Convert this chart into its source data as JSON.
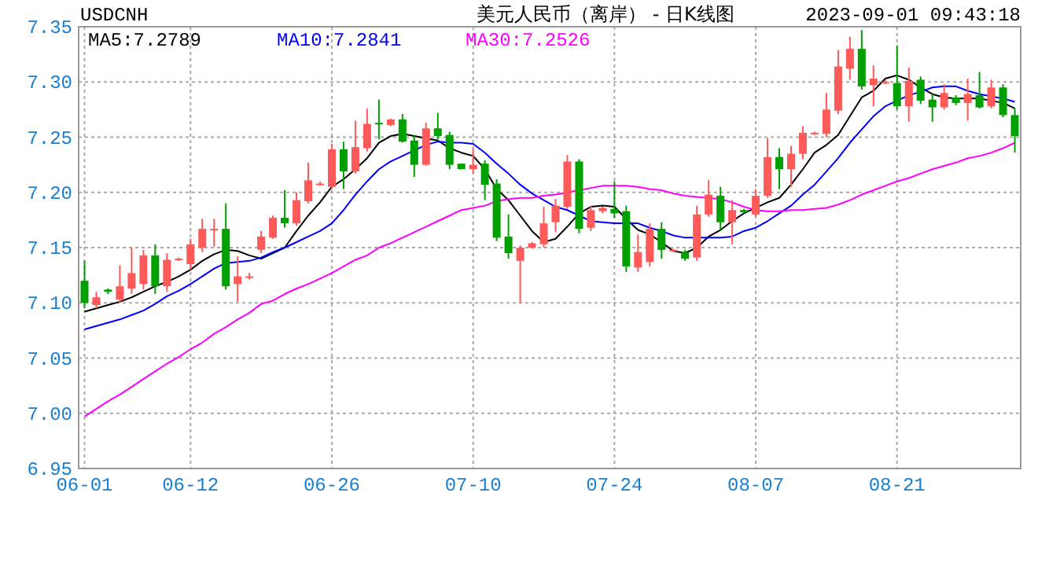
{
  "chart_data": {
    "type": "candlestick",
    "title": "美元人民币（离岸） - 日K线图",
    "annotations": [
      "USDCNH",
      "2023-09-01 09:43:18"
    ],
    "categories": [
      "06-01",
      null,
      null,
      null,
      null,
      null,
      null,
      null,
      null,
      "06-12",
      null,
      null,
      null,
      null,
      null,
      null,
      null,
      null,
      null,
      null,
      null,
      "06-26",
      null,
      null,
      null,
      null,
      null,
      null,
      null,
      null,
      null,
      null,
      null,
      "07-10",
      null,
      null,
      null,
      null,
      null,
      null,
      null,
      null,
      null,
      null,
      null,
      "07-24",
      null,
      null,
      null,
      null,
      null,
      null,
      null,
      null,
      null,
      null,
      null,
      "08-07",
      null,
      null,
      null,
      null,
      null,
      null,
      null,
      null,
      null,
      null,
      null,
      "08-21",
      null,
      null,
      null,
      null,
      null,
      null,
      null,
      null,
      null,
      null
    ],
    "ohlc": [
      [
        7.12,
        7.138,
        7.095,
        7.1
      ],
      [
        7.098,
        7.11,
        7.095,
        7.105
      ],
      [
        7.112,
        7.113,
        7.108,
        7.11
      ],
      [
        7.103,
        7.134,
        7.1,
        7.115
      ],
      [
        7.113,
        7.15,
        7.108,
        7.127
      ],
      [
        7.117,
        7.148,
        7.112,
        7.143
      ],
      [
        7.143,
        7.153,
        7.108,
        7.115
      ],
      [
        7.115,
        7.145,
        7.11,
        7.139
      ],
      [
        7.139,
        7.141,
        7.138,
        7.14
      ],
      [
        7.135,
        7.158,
        7.13,
        7.153
      ],
      [
        7.15,
        7.176,
        7.146,
        7.167
      ],
      [
        7.166,
        7.176,
        7.151,
        7.167
      ],
      [
        7.167,
        7.19,
        7.112,
        7.115
      ],
      [
        7.117,
        7.142,
        7.101,
        7.124
      ],
      [
        7.123,
        7.127,
        7.121,
        7.124
      ],
      [
        7.148,
        7.165,
        7.145,
        7.16
      ],
      [
        7.159,
        7.179,
        7.158,
        7.177
      ],
      [
        7.177,
        7.202,
        7.168,
        7.172
      ],
      [
        7.172,
        7.2,
        7.17,
        7.193
      ],
      [
        7.192,
        7.227,
        7.19,
        7.211
      ],
      [
        7.207,
        7.21,
        7.206,
        7.208
      ],
      [
        7.205,
        7.244,
        7.203,
        7.239
      ],
      [
        7.239,
        7.246,
        7.203,
        7.219
      ],
      [
        7.219,
        7.265,
        7.217,
        7.241
      ],
      [
        7.24,
        7.276,
        7.237,
        7.262
      ],
      [
        7.263,
        7.284,
        7.248,
        7.262
      ],
      [
        7.261,
        7.267,
        7.26,
        7.266
      ],
      [
        7.266,
        7.271,
        7.245,
        7.246
      ],
      [
        7.247,
        7.252,
        7.214,
        7.225
      ],
      [
        7.225,
        7.263,
        7.224,
        7.258
      ],
      [
        7.258,
        7.272,
        7.248,
        7.251
      ],
      [
        7.252,
        7.255,
        7.221,
        7.225
      ],
      [
        7.226,
        7.226,
        7.221,
        7.221
      ],
      [
        7.221,
        7.24,
        7.217,
        7.225
      ],
      [
        7.226,
        7.229,
        7.193,
        7.207
      ],
      [
        7.208,
        7.212,
        7.156,
        7.159
      ],
      [
        7.16,
        7.18,
        7.14,
        7.145
      ],
      [
        7.138,
        7.152,
        7.1,
        7.15
      ],
      [
        7.15,
        7.155,
        7.149,
        7.154
      ],
      [
        7.153,
        7.187,
        7.15,
        7.172
      ],
      [
        7.173,
        7.194,
        7.164,
        7.188
      ],
      [
        7.187,
        7.234,
        7.185,
        7.228
      ],
      [
        7.228,
        7.23,
        7.163,
        7.167
      ],
      [
        7.168,
        7.188,
        7.165,
        7.184
      ],
      [
        7.183,
        7.187,
        7.181,
        7.186
      ],
      [
        7.185,
        7.21,
        7.177,
        7.181
      ],
      [
        7.183,
        7.188,
        7.128,
        7.133
      ],
      [
        7.132,
        7.162,
        7.128,
        7.146
      ],
      [
        7.137,
        7.172,
        7.133,
        7.167
      ],
      [
        7.167,
        7.173,
        7.14,
        7.148
      ],
      [
        7.147,
        7.149,
        7.146,
        7.148
      ],
      [
        7.146,
        7.148,
        7.138,
        7.14
      ],
      [
        7.141,
        7.188,
        7.138,
        7.18
      ],
      [
        7.18,
        7.211,
        7.178,
        7.198
      ],
      [
        7.197,
        7.205,
        7.166,
        7.173
      ],
      [
        7.173,
        7.193,
        7.153,
        7.184
      ],
      [
        7.184,
        7.185,
        7.181,
        7.182
      ],
      [
        7.18,
        7.203,
        7.178,
        7.197
      ],
      [
        7.197,
        7.249,
        7.195,
        7.232
      ],
      [
        7.232,
        7.24,
        7.203,
        7.221
      ],
      [
        7.221,
        7.242,
        7.205,
        7.235
      ],
      [
        7.235,
        7.26,
        7.23,
        7.254
      ],
      [
        7.253,
        7.255,
        7.252,
        7.254
      ],
      [
        7.253,
        7.29,
        7.25,
        7.275
      ],
      [
        7.274,
        7.329,
        7.271,
        7.314
      ],
      [
        7.312,
        7.341,
        7.302,
        7.33
      ],
      [
        7.33,
        7.347,
        7.293,
        7.296
      ],
      [
        7.297,
        7.315,
        7.278,
        7.303
      ],
      [
        7.299,
        7.302,
        7.298,
        7.3
      ],
      [
        7.299,
        7.333,
        7.275,
        7.278
      ],
      [
        7.278,
        7.313,
        7.264,
        7.301
      ],
      [
        7.302,
        7.305,
        7.28,
        7.283
      ],
      [
        7.284,
        7.289,
        7.264,
        7.277
      ],
      [
        7.277,
        7.298,
        7.275,
        7.29
      ],
      [
        7.286,
        7.288,
        7.279,
        7.281
      ],
      [
        7.281,
        7.303,
        7.265,
        7.289
      ],
      [
        7.288,
        7.309,
        7.276,
        7.277
      ],
      [
        7.278,
        7.302,
        7.276,
        7.295
      ],
      [
        7.295,
        7.298,
        7.268,
        7.27
      ],
      [
        7.27,
        7.276,
        7.236,
        7.251
      ]
    ],
    "colors": [
      "#00a000",
      "#ff5a5a",
      "#00a000",
      "#ff5a5a",
      "#ff5a5a",
      "#ff5a5a",
      "#00a000",
      "#ff5a5a",
      "#ff5a5a",
      "#ff5a5a",
      "#ff5a5a",
      "#ff5a5a",
      "#00a000",
      "#ff5a5a",
      "#ff5a5a",
      "#ff5a5a",
      "#ff5a5a",
      "#00a000",
      "#ff5a5a",
      "#ff5a5a",
      "#ff5a5a",
      "#ff5a5a",
      "#00a000",
      "#ff5a5a",
      "#ff5a5a",
      "#00a000",
      "#ff5a5a",
      "#00a000",
      "#00a000",
      "#ff5a5a",
      "#00a000",
      "#00a000",
      "#00a000",
      "#ff5a5a",
      "#00a000",
      "#00a000",
      "#00a000",
      "#ff5a5a",
      "#ff5a5a",
      "#ff5a5a",
      "#ff5a5a",
      "#ff5a5a",
      "#00a000",
      "#ff5a5a",
      "#ff5a5a",
      "#00a000",
      "#00a000",
      "#ff5a5a",
      "#ff5a5a",
      "#00a000",
      "#ff5a5a",
      "#00a000",
      "#ff5a5a",
      "#ff5a5a",
      "#00a000",
      "#ff5a5a",
      "#00a000",
      "#ff5a5a",
      "#ff5a5a",
      "#00a000",
      "#ff5a5a",
      "#ff5a5a",
      "#ff5a5a",
      "#ff5a5a",
      "#ff5a5a",
      "#ff5a5a",
      "#00a000",
      "#ff5a5a",
      "#ff5a5a",
      "#00a000",
      "#ff5a5a",
      "#00a000",
      "#00a000",
      "#ff5a5a",
      "#00a000",
      "#ff5a5a",
      "#00a000",
      "#ff5a5a",
      "#00a000",
      "#00a000"
    ],
    "series": [
      {
        "type": "line",
        "name": "MA5:7.2789",
        "color": "#000000",
        "values": [
          7.092,
          7.095,
          7.098,
          7.101,
          7.105,
          7.11,
          7.115,
          7.119,
          7.124,
          7.13,
          7.138,
          7.144,
          7.148,
          7.147,
          7.143,
          7.14,
          7.145,
          7.15,
          7.165,
          7.179,
          7.191,
          7.205,
          7.212,
          7.221,
          7.231,
          7.245,
          7.251,
          7.253,
          7.251,
          7.249,
          7.247,
          7.24,
          7.236,
          7.233,
          7.221,
          7.203,
          7.193,
          7.179,
          7.165,
          7.155,
          7.158,
          7.169,
          7.181,
          7.187,
          7.188,
          7.187,
          7.176,
          7.166,
          7.162,
          7.155,
          7.147,
          7.145,
          7.15,
          7.16,
          7.166,
          7.174,
          7.181,
          7.186,
          7.191,
          7.195,
          7.207,
          7.221,
          7.236,
          7.243,
          7.252,
          7.269,
          7.286,
          7.292,
          7.303,
          7.306,
          7.302,
          7.295,
          7.289,
          7.286,
          7.285,
          7.285,
          7.285,
          7.283,
          7.281,
          7.276
        ]
      },
      {
        "type": "line",
        "name": "MA10:7.2841",
        "color": "#0000ff",
        "values": [
          7.076,
          7.079,
          7.082,
          7.085,
          7.089,
          7.093,
          7.099,
          7.106,
          7.111,
          7.117,
          7.124,
          7.131,
          7.136,
          7.137,
          7.138,
          7.141,
          7.146,
          7.15,
          7.155,
          7.16,
          7.165,
          7.172,
          7.184,
          7.198,
          7.21,
          7.221,
          7.228,
          7.233,
          7.238,
          7.243,
          7.246,
          7.245,
          7.245,
          7.244,
          7.236,
          7.226,
          7.217,
          7.207,
          7.199,
          7.193,
          7.187,
          7.184,
          7.179,
          7.174,
          7.173,
          7.172,
          7.172,
          7.172,
          7.168,
          7.165,
          7.161,
          7.159,
          7.159,
          7.159,
          7.159,
          7.16,
          7.165,
          7.168,
          7.174,
          7.181,
          7.188,
          7.198,
          7.207,
          7.219,
          7.231,
          7.245,
          7.257,
          7.269,
          7.278,
          7.283,
          7.288,
          7.291,
          7.295,
          7.296,
          7.296,
          7.292,
          7.289,
          7.287,
          7.285,
          7.282
        ]
      },
      {
        "type": "line",
        "name": "MA30:7.2526",
        "color": "#ff00ff",
        "values": [
          6.997,
          7.004,
          7.011,
          7.017,
          7.024,
          7.031,
          7.038,
          7.045,
          7.051,
          7.058,
          7.064,
          7.072,
          7.078,
          7.085,
          7.091,
          7.099,
          7.102,
          7.108,
          7.113,
          7.117,
          7.122,
          7.127,
          7.133,
          7.139,
          7.143,
          7.15,
          7.154,
          7.159,
          7.164,
          7.169,
          7.174,
          7.179,
          7.184,
          7.186,
          7.188,
          7.192,
          7.194,
          7.195,
          7.195,
          7.197,
          7.198,
          7.2,
          7.202,
          7.204,
          7.206,
          7.206,
          7.206,
          7.205,
          7.203,
          7.202,
          7.199,
          7.197,
          7.196,
          7.195,
          7.194,
          7.191,
          7.187,
          7.184,
          7.183,
          7.183,
          7.184,
          7.184,
          7.185,
          7.186,
          7.189,
          7.193,
          7.198,
          7.202,
          7.206,
          7.21,
          7.213,
          7.217,
          7.221,
          7.224,
          7.227,
          7.231,
          7.233,
          7.236,
          7.24,
          7.245
        ]
      }
    ],
    "ylim": [
      6.95,
      7.35
    ],
    "yticks": [
      {
        "value": 6.95,
        "label": "6.95"
      },
      {
        "value": 7.0,
        "label": "7.00"
      },
      {
        "value": 7.05,
        "label": "7.05"
      },
      {
        "value": 7.1,
        "label": "7.10"
      },
      {
        "value": 7.15,
        "label": "7.15"
      },
      {
        "value": 7.2,
        "label": "7.20"
      },
      {
        "value": 7.25,
        "label": "7.25"
      },
      {
        "value": 7.3,
        "label": "7.30"
      },
      {
        "value": 7.35,
        "label": "7.35"
      }
    ],
    "grid": true,
    "legend": "top"
  }
}
